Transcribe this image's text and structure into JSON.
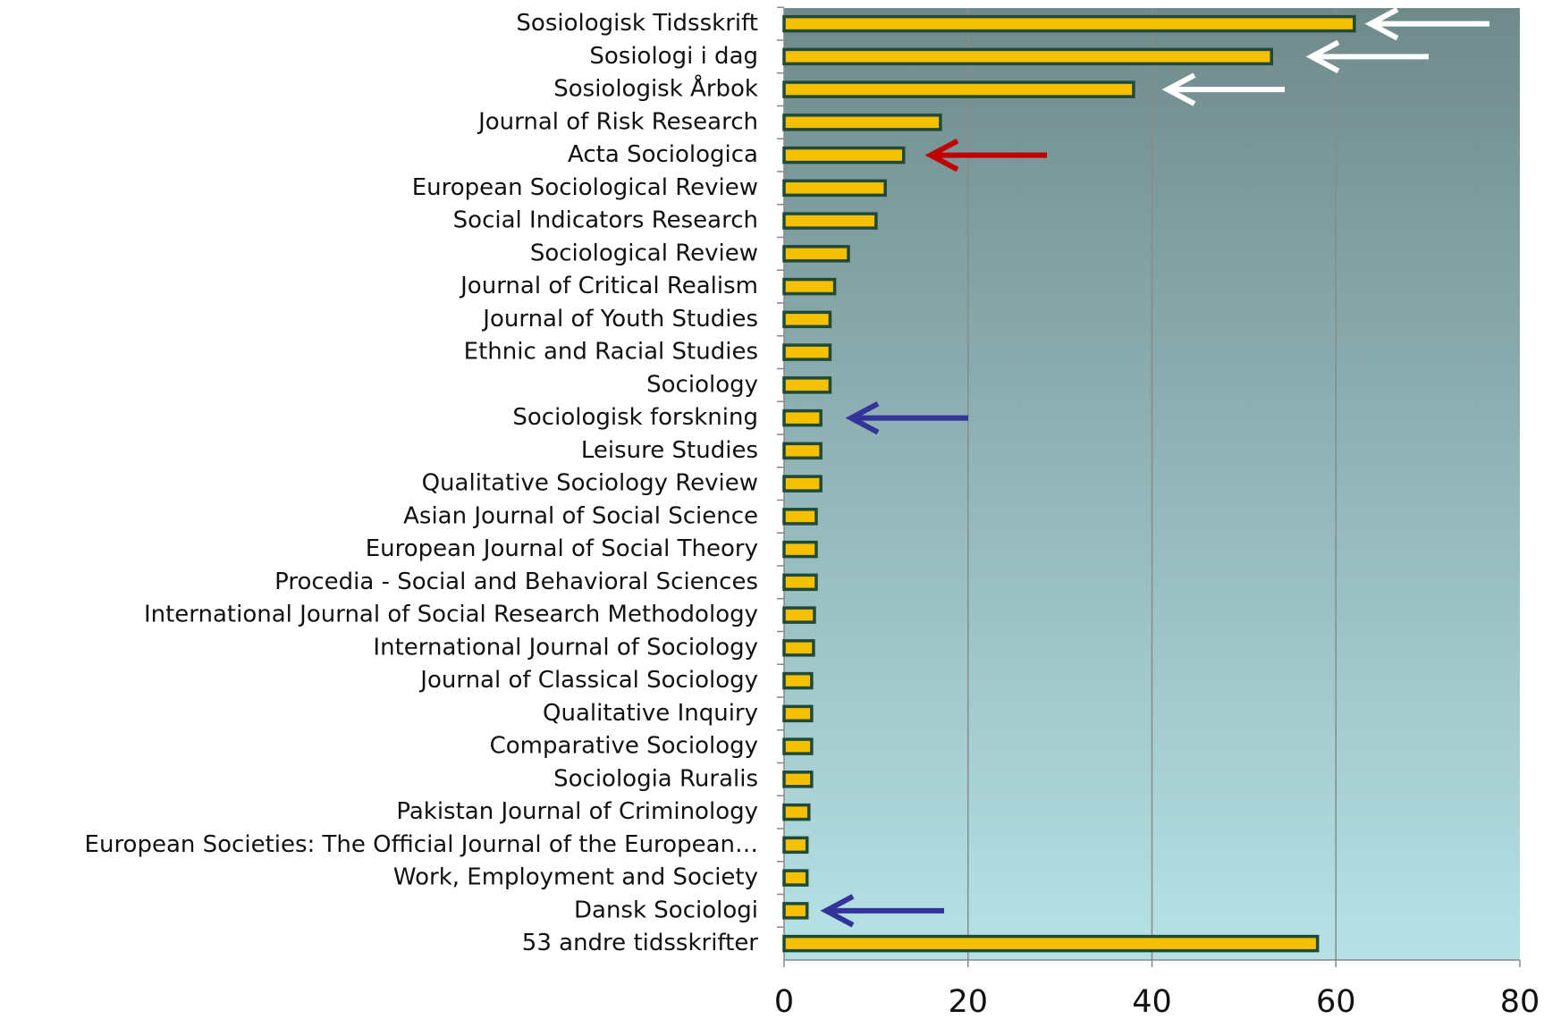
{
  "chart_data": {
    "type": "barh",
    "categories": [
      "Sosiologisk Tidsskrift",
      "Sosiologi i dag",
      "Sosiologisk Årbok",
      "Journal of Risk Research",
      "Acta Sociologica",
      "European Sociological Review",
      "Social Indicators Research",
      "Sociological Review",
      "Journal of Critical Realism",
      "Journal of Youth Studies",
      "Ethnic and Racial Studies",
      "Sociology",
      "Sociologisk forskning",
      "Leisure Studies",
      "Qualitative Sociology Review",
      "Asian Journal of Social Science",
      "European Journal of Social Theory",
      "Procedia - Social and Behavioral Sciences",
      "International Journal of Social Research Methodology",
      "International Journal of Sociology",
      "Journal of Classical Sociology",
      "Qualitative Inquiry",
      "Comparative Sociology",
      "Sociologia Ruralis",
      "Pakistan Journal of Criminology",
      "European Societies: The Official Journal of the European…",
      "Work, Employment and Society",
      "Dansk Sociologi",
      "53 andre tidsskrifter"
    ],
    "values": [
      62,
      53,
      38,
      17,
      13,
      11,
      10,
      7,
      5.5,
      5,
      5,
      5,
      4,
      4,
      4,
      3.5,
      3.5,
      3.5,
      3.3,
      3.2,
      3,
      3,
      3,
      3,
      2.7,
      2.5,
      2.5,
      2.5,
      58
    ],
    "color": "#f5c000",
    "xlim": [
      0,
      80
    ],
    "xticks": [
      0,
      20,
      40,
      60,
      80
    ],
    "grid": true
  }
}
